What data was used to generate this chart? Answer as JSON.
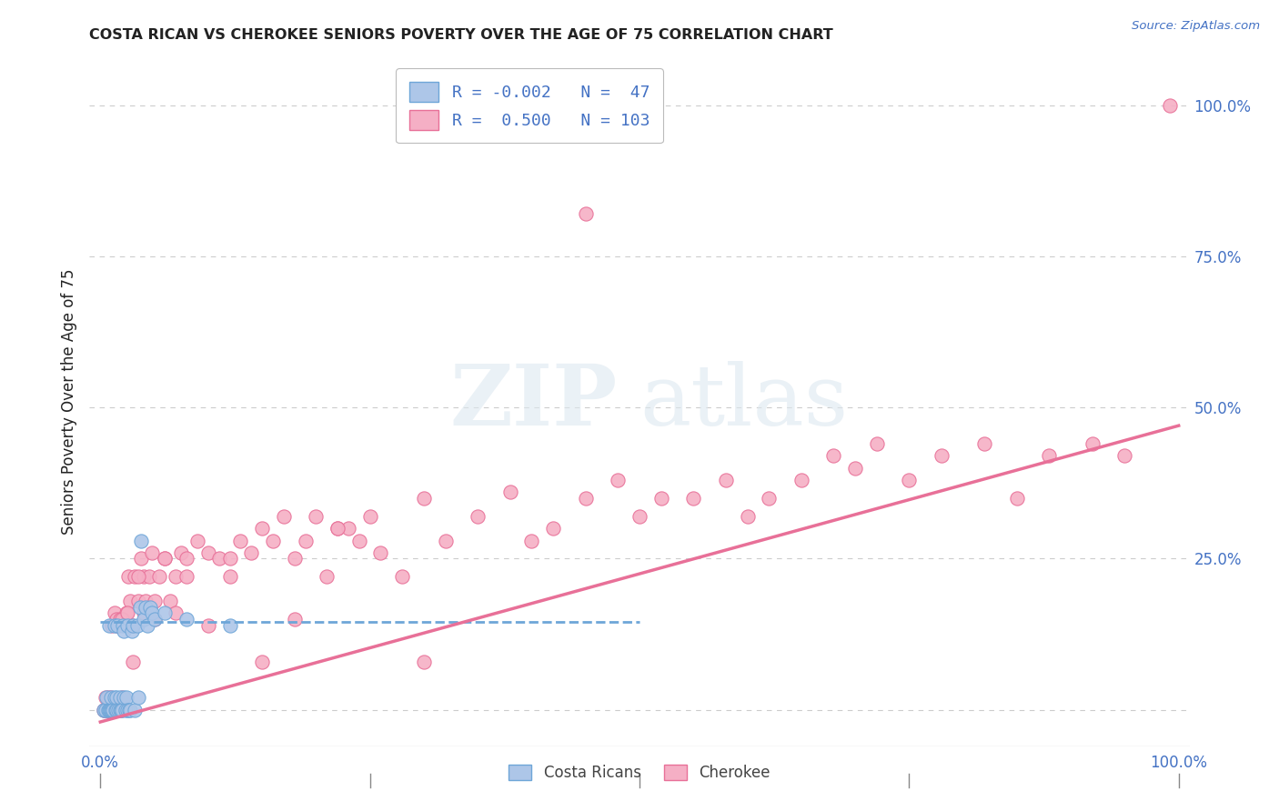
{
  "title": "COSTA RICAN VS CHEROKEE SENIORS POVERTY OVER THE AGE OF 75 CORRELATION CHART",
  "source": "Source: ZipAtlas.com",
  "ylabel": "Seniors Poverty Over the Age of 75",
  "watermark_zip": "ZIP",
  "watermark_atlas": "atlas",
  "legend_entries": [
    {
      "label": "Costa Ricans",
      "R": -0.002,
      "N": 47,
      "face_color": "#adc6e8",
      "edge_color": "#6ea6d8"
    },
    {
      "label": "Cherokee",
      "R": 0.5,
      "N": 103,
      "face_color": "#f5afc5",
      "edge_color": "#e87098"
    }
  ],
  "xlim": [
    -0.01,
    1.01
  ],
  "ylim": [
    -0.06,
    1.08
  ],
  "cr_x": [
    0.003,
    0.005,
    0.006,
    0.007,
    0.008,
    0.008,
    0.009,
    0.01,
    0.01,
    0.011,
    0.012,
    0.013,
    0.013,
    0.014,
    0.015,
    0.015,
    0.016,
    0.017,
    0.018,
    0.018,
    0.019,
    0.02,
    0.021,
    0.022,
    0.022,
    0.023,
    0.024,
    0.025,
    0.025,
    0.027,
    0.028,
    0.029,
    0.03,
    0.032,
    0.034,
    0.035,
    0.037,
    0.038,
    0.04,
    0.042,
    0.044,
    0.046,
    0.048,
    0.05,
    0.06,
    0.08,
    0.12
  ],
  "cr_y": [
    0.0,
    0.0,
    0.02,
    0.0,
    0.14,
    0.0,
    0.0,
    0.0,
    0.02,
    0.0,
    0.0,
    0.14,
    0.02,
    0.0,
    0.02,
    0.0,
    0.14,
    0.0,
    0.02,
    0.0,
    0.0,
    0.0,
    0.14,
    0.13,
    0.02,
    0.0,
    0.02,
    0.0,
    0.14,
    0.0,
    0.0,
    0.13,
    0.14,
    0.0,
    0.14,
    0.02,
    0.17,
    0.28,
    0.15,
    0.17,
    0.14,
    0.17,
    0.16,
    0.15,
    0.16,
    0.15,
    0.14
  ],
  "ck_x": [
    0.003,
    0.004,
    0.005,
    0.006,
    0.007,
    0.008,
    0.009,
    0.01,
    0.011,
    0.012,
    0.013,
    0.014,
    0.015,
    0.016,
    0.017,
    0.018,
    0.019,
    0.02,
    0.022,
    0.024,
    0.026,
    0.028,
    0.03,
    0.032,
    0.035,
    0.038,
    0.04,
    0.042,
    0.045,
    0.048,
    0.05,
    0.055,
    0.06,
    0.065,
    0.07,
    0.075,
    0.08,
    0.09,
    0.1,
    0.11,
    0.12,
    0.13,
    0.14,
    0.15,
    0.16,
    0.17,
    0.18,
    0.19,
    0.2,
    0.21,
    0.22,
    0.23,
    0.24,
    0.25,
    0.26,
    0.28,
    0.3,
    0.32,
    0.35,
    0.38,
    0.4,
    0.42,
    0.45,
    0.48,
    0.5,
    0.52,
    0.55,
    0.58,
    0.6,
    0.62,
    0.65,
    0.68,
    0.7,
    0.72,
    0.75,
    0.78,
    0.82,
    0.85,
    0.88,
    0.92,
    0.95,
    0.992,
    0.004,
    0.006,
    0.008,
    0.01,
    0.015,
    0.02,
    0.025,
    0.03,
    0.035,
    0.04,
    0.05,
    0.06,
    0.07,
    0.08,
    0.1,
    0.12,
    0.15,
    0.18,
    0.22,
    0.3,
    0.45
  ],
  "ck_y": [
    0.0,
    0.0,
    0.02,
    0.0,
    0.02,
    0.0,
    0.0,
    0.02,
    0.14,
    0.0,
    0.16,
    0.0,
    0.15,
    0.0,
    0.14,
    0.15,
    0.0,
    0.02,
    0.15,
    0.16,
    0.22,
    0.18,
    0.14,
    0.22,
    0.18,
    0.25,
    0.22,
    0.18,
    0.22,
    0.26,
    0.15,
    0.22,
    0.25,
    0.18,
    0.22,
    0.26,
    0.25,
    0.28,
    0.26,
    0.25,
    0.22,
    0.28,
    0.26,
    0.3,
    0.28,
    0.32,
    0.25,
    0.28,
    0.32,
    0.22,
    0.3,
    0.3,
    0.28,
    0.32,
    0.26,
    0.22,
    0.35,
    0.28,
    0.32,
    0.36,
    0.28,
    0.3,
    0.35,
    0.38,
    0.32,
    0.35,
    0.35,
    0.38,
    0.32,
    0.35,
    0.38,
    0.42,
    0.4,
    0.44,
    0.38,
    0.42,
    0.44,
    0.35,
    0.42,
    0.44,
    0.42,
    1.0,
    0.0,
    0.0,
    0.0,
    0.0,
    0.14,
    0.15,
    0.16,
    0.08,
    0.22,
    0.16,
    0.18,
    0.25,
    0.16,
    0.22,
    0.14,
    0.25,
    0.08,
    0.15,
    0.3,
    0.08,
    0.82
  ],
  "cr_line_x": [
    0.0,
    0.5
  ],
  "cr_line_y_start": 0.145,
  "cr_line_y_end": 0.145,
  "ck_line_x": [
    0.0,
    1.0
  ],
  "ck_line_y_start": -0.02,
  "ck_line_y_end": 0.47,
  "background_color": "#ffffff",
  "grid_color": "#cccccc",
  "title_color": "#222222",
  "ytick_right_color": "#4472c4",
  "legend_text_color": "#4472c4",
  "source_color": "#4472c4",
  "bottom_legend_color": "#444444"
}
